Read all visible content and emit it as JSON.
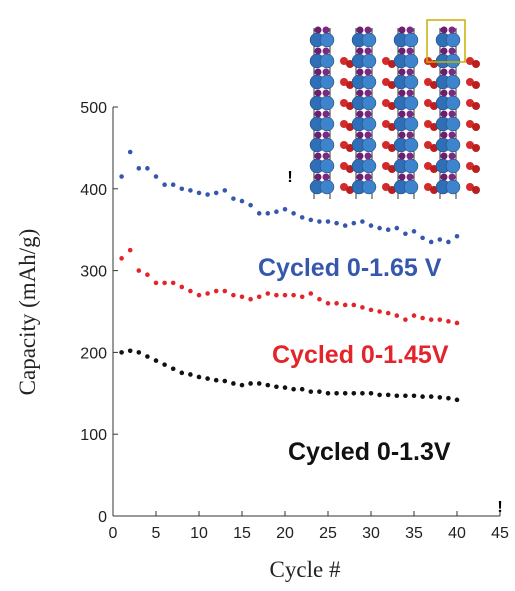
{
  "chart_data": {
    "type": "scatter",
    "x_label": "Cycle #",
    "y_label": "Capacity (mAh/g)",
    "x": [
      1,
      2,
      3,
      4,
      5,
      6,
      7,
      8,
      9,
      10,
      11,
      12,
      13,
      14,
      15,
      16,
      17,
      18,
      19,
      20,
      21,
      22,
      23,
      24,
      25,
      26,
      27,
      28,
      29,
      30,
      31,
      32,
      33,
      34,
      35,
      36,
      37,
      38,
      39,
      40
    ],
    "series": [
      {
        "name": "Cycled 0-1.65 V",
        "color": "#3558ad",
        "values": [
          415,
          445,
          425,
          425,
          415,
          405,
          405,
          400,
          398,
          395,
          393,
          395,
          398,
          388,
          385,
          380,
          370,
          370,
          372,
          375,
          370,
          365,
          362,
          360,
          360,
          358,
          355,
          358,
          360,
          355,
          352,
          350,
          352,
          345,
          348,
          340,
          335,
          338,
          335,
          342
        ]
      },
      {
        "name": "Cycled 0-1.45V",
        "color": "#e3242b",
        "values": [
          315,
          325,
          300,
          295,
          285,
          285,
          285,
          280,
          275,
          270,
          272,
          275,
          275,
          270,
          268,
          265,
          268,
          272,
          270,
          270,
          270,
          268,
          272,
          265,
          260,
          260,
          258,
          258,
          255,
          252,
          250,
          248,
          245,
          240,
          245,
          242,
          240,
          240,
          238,
          236
        ]
      },
      {
        "name": "Cycled 0-1.3V",
        "color": "#111111",
        "values": [
          200,
          202,
          200,
          195,
          190,
          185,
          180,
          175,
          173,
          170,
          168,
          166,
          165,
          162,
          160,
          162,
          162,
          160,
          158,
          157,
          155,
          155,
          152,
          152,
          150,
          150,
          150,
          150,
          150,
          150,
          148,
          148,
          147,
          147,
          147,
          146,
          146,
          145,
          144,
          142
        ]
      }
    ],
    "annotations": [
      "!",
      "!"
    ],
    "xlim": [
      0,
      45
    ],
    "xticks": [
      0,
      5,
      10,
      15,
      20,
      25,
      30,
      35,
      40,
      45
    ],
    "ylim": [
      0,
      500
    ],
    "yticks": [
      0,
      100,
      200,
      300,
      400,
      500
    ]
  }
}
